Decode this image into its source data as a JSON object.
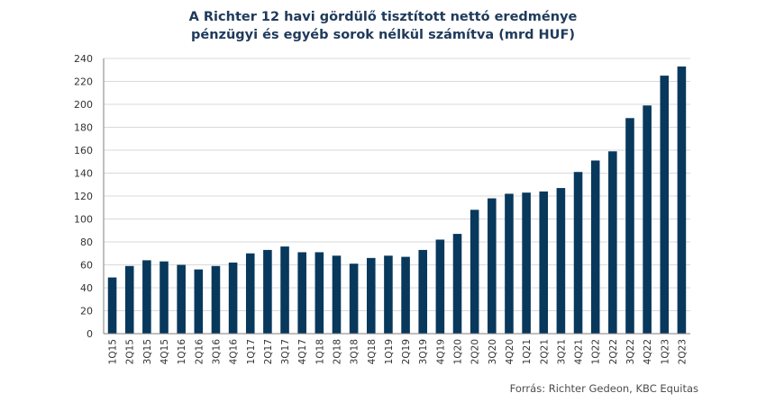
{
  "chart_data": {
    "type": "bar",
    "title": [
      "A Richter 12 havi gördülő tisztított nettó eredménye",
      "pénzügyi és egyéb sorok nélkül számítva (mrd HUF)"
    ],
    "categories": [
      "1Q15",
      "2Q15",
      "3Q15",
      "4Q15",
      "1Q16",
      "2Q16",
      "3Q16",
      "4Q16",
      "1Q17",
      "2Q17",
      "3Q17",
      "4Q17",
      "1Q18",
      "2Q18",
      "3Q18",
      "4Q18",
      "1Q19",
      "2Q19",
      "3Q19",
      "4Q19",
      "1Q20",
      "2Q20",
      "3Q20",
      "4Q20",
      "1Q21",
      "2Q21",
      "3Q21",
      "4Q21",
      "1Q22",
      "2Q22",
      "3Q22",
      "4Q22",
      "1Q23",
      "2Q23"
    ],
    "values": [
      49,
      59,
      64,
      63,
      60,
      56,
      59,
      62,
      70,
      73,
      76,
      71,
      71,
      68,
      61,
      66,
      68,
      67,
      73,
      82,
      87,
      108,
      118,
      122,
      123,
      124,
      127,
      141,
      151,
      159,
      188,
      199,
      225,
      233
    ],
    "ylim": [
      0,
      240
    ],
    "yticks": [
      0,
      20,
      40,
      60,
      80,
      100,
      120,
      140,
      160,
      180,
      200,
      220,
      240
    ],
    "xlabel": "",
    "ylabel": "",
    "grid": true,
    "legend": "none",
    "bar_color": "#08385c",
    "grid_color": "#d9d9d9",
    "axis_color": "#7f7f7f",
    "source": "Forrás: Richter Gedeon, KBC Equitas"
  }
}
